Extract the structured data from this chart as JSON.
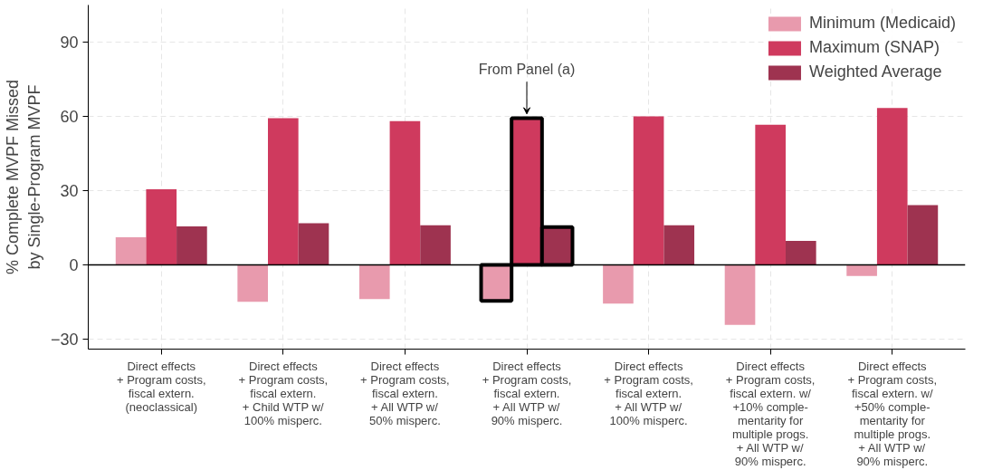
{
  "chart_data": {
    "type": "bar",
    "ylabel": "% Complete MVPF Missed\nby Single-Program MVPF",
    "categories": [
      "Direct effects\n+ Program costs,\nfiscal extern.\n(neoclassical)",
      "Direct effects\n+ Program costs,\nfiscal extern.\n+ Child WTP w/\n100% misperc.",
      "Direct effects\n+ Program costs,\nfiscal extern.\n+ All WTP w/\n50% misperc.",
      "Direct effects\n+ Program costs,\nfiscal extern.\n+ All WTP w/\n90% misperc.",
      "Direct effects\n+ Program costs,\nfiscal extern.\n+ All WTP w/\n100% misperc.",
      "Direct effects\n+ Program costs,\nfiscal extern. w/\n+10% comple-\nmentarity for\nmultiple progs.\n+ All WTP w/\n90% misperc.",
      "Direct effects\n+ Program costs,\nfiscal extern. w/\n+50% comple-\nmentarity for\nmultiple progs.\n+ All WTP w/\n90% misperc."
    ],
    "series": [
      {
        "name": "Minimum (Medicaid)",
        "color": "#e89aad",
        "values": [
          11.2,
          -14.9,
          -13.8,
          -14.5,
          -15.6,
          -24.2,
          -4.5
        ]
      },
      {
        "name": "Maximum (SNAP)",
        "color": "#cf3a5e",
        "values": [
          30.6,
          59.3,
          58.1,
          59.3,
          60.0,
          56.6,
          63.4
        ]
      },
      {
        "name": "Weighted Average",
        "color": "#9e3350",
        "values": [
          15.6,
          16.8,
          16.0,
          15.3,
          16.0,
          9.7,
          24.2
        ]
      }
    ],
    "annotations": [
      {
        "text": "From Panel (a)",
        "x": "Direct effects\n+ Program costs,\nfiscal extern.\n+ All WTP w/\n90% misperc.",
        "y": 61
      }
    ],
    "ylim": [
      -34,
      105
    ],
    "yticks": [
      -30,
      0,
      30,
      60,
      90
    ],
    "grid": true,
    "legend": "top right"
  }
}
